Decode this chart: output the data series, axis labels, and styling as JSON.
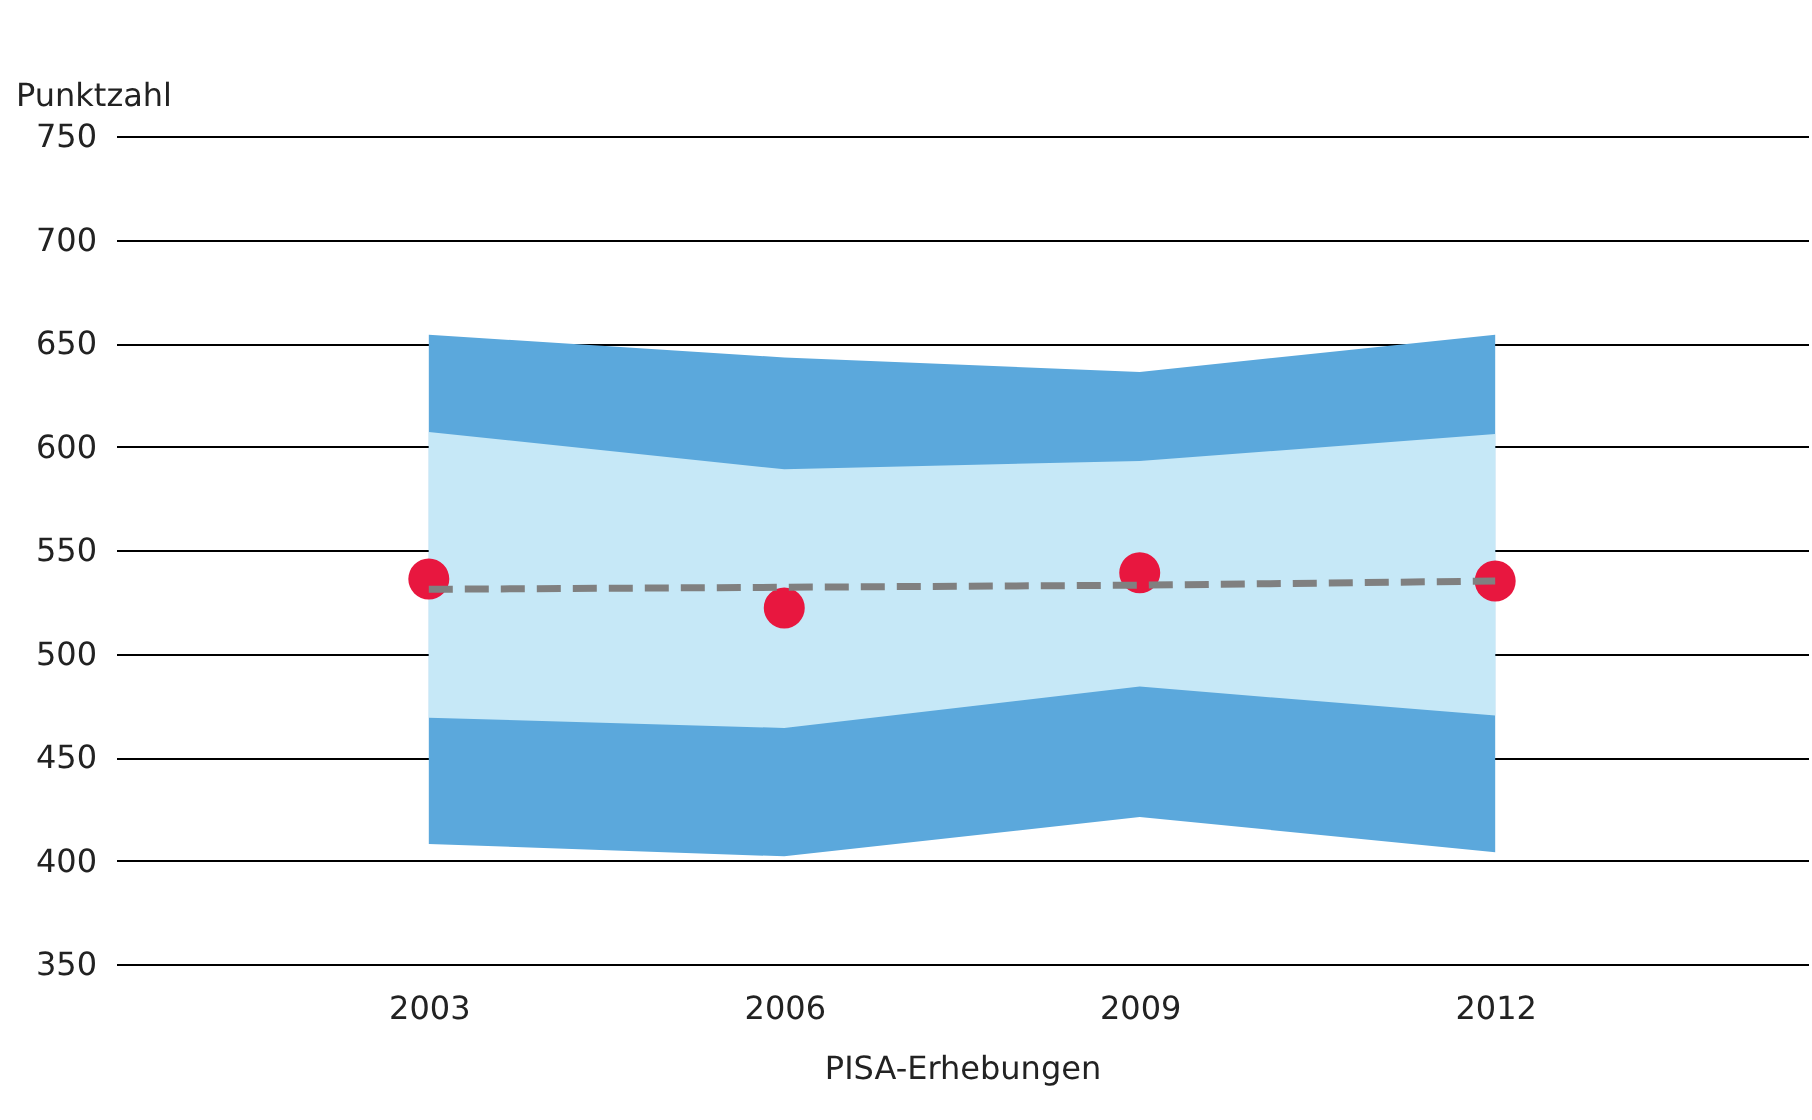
{
  "chart_data": {
    "type": "line",
    "xlabel": "PISA-Erhebungen",
    "ylabel": "Punktzahl",
    "categories": [
      "2003",
      "2006",
      "2009",
      "2012"
    ],
    "series": [
      {
        "type": "scatter",
        "color": "#e8173f",
        "marker": "circle",
        "values": [
          536,
          522,
          539,
          535
        ],
        "lower": [
          408,
          402,
          421,
          404
        ],
        "upper": [
          654,
          643,
          636,
          654
        ]
      },
      {
        "color": "#808080",
        "line_style": "dashed",
        "marker": "none",
        "values": [
          531,
          532,
          533,
          535
        ],
        "lower": [
          469,
          464,
          484,
          470
        ],
        "upper": [
          607,
          589,
          593,
          606
        ]
      }
    ],
    "ylim": [
      350,
      750
    ],
    "yticks": [
      350,
      400,
      450,
      500,
      550,
      600,
      650,
      700,
      750
    ],
    "grid": "y"
  }
}
